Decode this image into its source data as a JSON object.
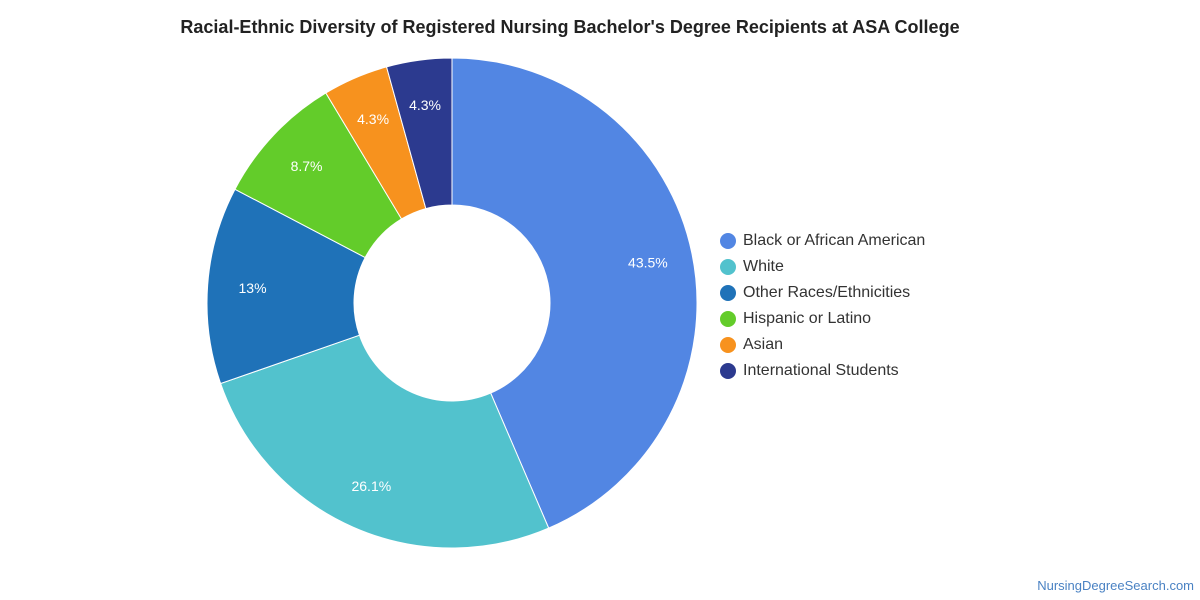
{
  "chart_data": {
    "type": "pie",
    "title": "Racial-Ethnic Diversity of Registered Nursing Bachelor's Degree Recipients at ASA College",
    "donut": true,
    "legend_position": "right",
    "slices": [
      {
        "label": "Black or African American",
        "value": 43.5,
        "display": "43.5%",
        "color": "#5286e3"
      },
      {
        "label": "White",
        "value": 26.1,
        "display": "26.1%",
        "color": "#52c2cd"
      },
      {
        "label": "Other Races/Ethnicities",
        "value": 13.0,
        "display": "13%",
        "color": "#1f72b8"
      },
      {
        "label": "Hispanic or Latino",
        "value": 8.7,
        "display": "8.7%",
        "color": "#63cc2a"
      },
      {
        "label": "Asian",
        "value": 4.3,
        "display": "4.3%",
        "color": "#f7921e"
      },
      {
        "label": "International Students",
        "value": 4.3,
        "display": "4.3%",
        "color": "#2c3a8f"
      }
    ]
  },
  "footer": {
    "source": "NursingDegreeSearch.com"
  }
}
